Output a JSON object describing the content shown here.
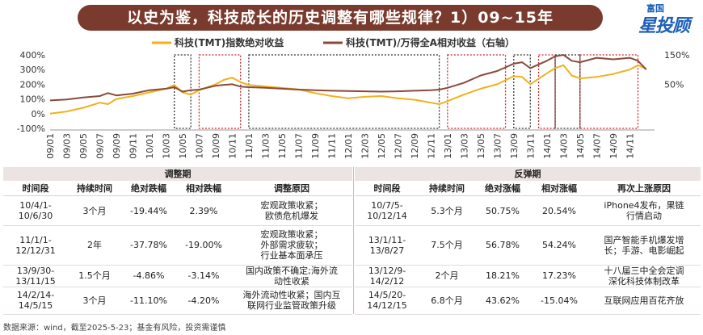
{
  "header": {
    "title": "以史为鉴，科技成长的历史调整有哪些规律？1）09~15年"
  },
  "logo": {
    "line1": "富国",
    "line2": "星投顾"
  },
  "colors": {
    "absolute": "#f2b11b",
    "relative": "#8a4a3a",
    "box_black": "#333333",
    "box_red": "#c8282f",
    "banner": "#7a3b2e"
  },
  "chart_data": {
    "type": "line",
    "legend": [
      "科技(TMT)指数绝对收益",
      "科技(TMT)/万得全A相对收益（右轴）"
    ],
    "legend_position": "top",
    "left_axis": {
      "ticks": [
        "400%",
        "300%",
        "200%",
        "100%",
        "0%",
        "-100%"
      ],
      "range": [
        -100,
        400
      ]
    },
    "right_axis": {
      "ticks": [
        "150%",
        "50%"
      ],
      "range": [
        -100,
        150
      ]
    },
    "x_ticks": [
      "09/01",
      "09/03",
      "09/05",
      "09/07",
      "09/09",
      "09/11",
      "10/01",
      "10/03",
      "10/05",
      "10/07",
      "10/09",
      "10/11",
      "11/01",
      "11/03",
      "11/05",
      "11/07",
      "11/09",
      "11/11",
      "12/01",
      "12/03",
      "12/05",
      "12/07",
      "12/09",
      "12/11",
      "13/01",
      "13/03",
      "13/05",
      "13/07",
      "13/09",
      "13/11",
      "14/01",
      "14/03",
      "14/05",
      "14/07",
      "14/09",
      "14/11"
    ],
    "series": [
      {
        "name": "科技(TMT)指数绝对收益",
        "axis": "left",
        "x": [
          "09/01",
          "09/03",
          "09/05",
          "09/07",
          "09/08",
          "09/09",
          "09/11",
          "10/01",
          "10/03",
          "10/04",
          "10/05",
          "10/06",
          "10/07",
          "10/09",
          "10/10",
          "10/11",
          "10/12",
          "11/01",
          "11/03",
          "11/05",
          "11/07",
          "11/09",
          "11/11",
          "12/01",
          "12/03",
          "12/05",
          "12/07",
          "12/09",
          "12/11",
          "12/12",
          "13/01",
          "13/03",
          "13/05",
          "13/07",
          "13/09",
          "13/10",
          "13/11",
          "14/01",
          "14/02",
          "14/03",
          "14/04",
          "14/05",
          "14/07",
          "14/09",
          "14/11",
          "14/12",
          "15/01"
        ],
        "values": [
          0,
          15,
          40,
          75,
          65,
          100,
          120,
          145,
          170,
          195,
          145,
          130,
          160,
          200,
          230,
          245,
          215,
          195,
          185,
          175,
          165,
          140,
          120,
          105,
          115,
          120,
          105,
          95,
          75,
          65,
          85,
          130,
          170,
          200,
          255,
          250,
          200,
          275,
          310,
          330,
          260,
          240,
          250,
          270,
          300,
          330,
          305
        ]
      },
      {
        "name": "科技(TMT)/万得全A相对收益（右轴）",
        "axis": "right",
        "x": [
          "09/01",
          "09/03",
          "09/05",
          "09/07",
          "09/08",
          "09/09",
          "09/11",
          "10/01",
          "10/03",
          "10/04",
          "10/05",
          "10/06",
          "10/07",
          "10/09",
          "10/10",
          "10/11",
          "10/12",
          "11/01",
          "11/03",
          "11/05",
          "11/07",
          "11/09",
          "11/11",
          "12/01",
          "12/03",
          "12/05",
          "12/07",
          "12/09",
          "12/11",
          "12/12",
          "13/01",
          "13/03",
          "13/05",
          "13/07",
          "13/09",
          "13/10",
          "13/11",
          "14/01",
          "14/02",
          "14/03",
          "14/04",
          "14/05",
          "14/07",
          "14/09",
          "14/11",
          "14/12",
          "15/01"
        ],
        "values": [
          -5,
          -2,
          5,
          10,
          20,
          12,
          18,
          30,
          35,
          40,
          25,
          30,
          32,
          45,
          48,
          50,
          42,
          40,
          38,
          35,
          32,
          30,
          28,
          27,
          26,
          25,
          26,
          28,
          30,
          32,
          38,
          55,
          80,
          95,
          120,
          125,
          105,
          130,
          145,
          150,
          130,
          125,
          140,
          135,
          140,
          130,
          100
        ]
      }
    ],
    "shaded_boxes": [
      {
        "range": [
          "10/04",
          "10/06"
        ],
        "type": "调整期"
      },
      {
        "range": [
          "10/07",
          "10/12"
        ],
        "type": "反弹期"
      },
      {
        "range": [
          "11/01",
          "12/12"
        ],
        "type": "调整期"
      },
      {
        "range": [
          "13/01",
          "13/08"
        ],
        "type": "反弹期"
      },
      {
        "range": [
          "13/09",
          "13/11"
        ],
        "type": "调整期"
      },
      {
        "range": [
          "13/12",
          "14/02"
        ],
        "type": "反弹期"
      },
      {
        "range": [
          "14/02",
          "14/05"
        ],
        "type": "调整期"
      },
      {
        "range": [
          "14/05",
          "14/12"
        ],
        "type": "反弹期"
      }
    ]
  },
  "tables": {
    "adjust": {
      "title": "调整期",
      "headers": [
        "时间段",
        "持续时间",
        "绝对跌幅",
        "相对跌幅",
        "调整原因"
      ],
      "rows": [
        {
          "period": [
            "10/4/1-",
            "10/6/30"
          ],
          "duration": "3个月",
          "abs": "-19.44%",
          "rel": "2.39%",
          "reason": [
            "宏观政策收紧；",
            "欧债危机爆发"
          ]
        },
        {
          "period": [
            "11/1/1-",
            "12/12/31"
          ],
          "duration": "2年",
          "abs": "-37.78%",
          "rel": "-19.00%",
          "reason": [
            "宏观政策收紧；",
            "外部需求疲软；",
            "行业基本面承压"
          ]
        },
        {
          "period": [
            "13/9/30-",
            "13/11/15"
          ],
          "duration": "1.5个月",
          "abs": "-4.86%",
          "rel": "-3.14%",
          "reason": [
            "国内政策不确定;海外流",
            "动性收紧"
          ]
        },
        {
          "period": [
            "14/2/14-",
            "14/5/15"
          ],
          "duration": "3个月",
          "abs": "-11.10%",
          "rel": "-4.20%",
          "reason": [
            "海外流动性收紧；国内互",
            "联网行业监管政策升级"
          ]
        }
      ]
    },
    "rebound": {
      "title": "反弹期",
      "headers": [
        "时间段",
        "持续时间",
        "绝对涨幅",
        "相对涨幅",
        "再次上涨原因"
      ],
      "rows": [
        {
          "period": [
            "10/7/5-",
            "10/12/14"
          ],
          "duration": "5.3个月",
          "abs": "50.75%",
          "rel": "20.54%",
          "reason": [
            "iPhone4发布，果链",
            "行情启动"
          ]
        },
        {
          "period": [
            "13/1/11-",
            "13/8/27"
          ],
          "duration": "7.5个月",
          "abs": "56.78%",
          "rel": "54.24%",
          "reason": [
            "国产智能手机爆发增",
            "长；手游、电影崛起"
          ]
        },
        {
          "period": [
            "13/12/9-",
            "14/2/12"
          ],
          "duration": "2个月",
          "abs": "18.21%",
          "rel": "17.23%",
          "reason": [
            "十八届三中全会定调",
            "深化科技体制改革"
          ]
        },
        {
          "period": [
            "14/5/20-",
            "14/12/15"
          ],
          "duration": "6.8个月",
          "abs": "43.62%",
          "rel": "-15.04%",
          "reason": [
            "互联网应用百花齐放"
          ]
        }
      ]
    }
  },
  "footer": {
    "source": "数据来源：wind，截至2025-5-23；基金有风险，投资需谨慎"
  }
}
